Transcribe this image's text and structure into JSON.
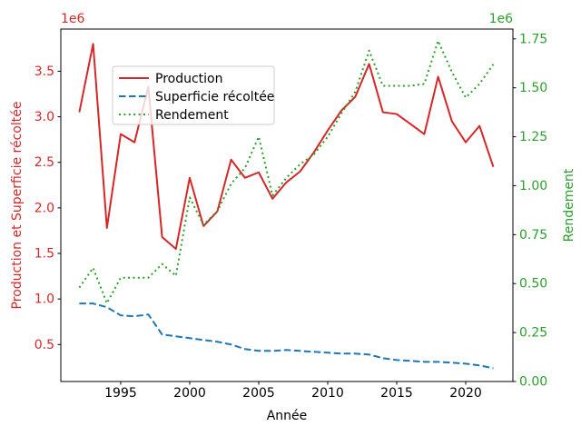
{
  "chart_data": {
    "type": "line",
    "xlabel": "Année",
    "ylabel_left": "Production et Superficie récoltée",
    "ylabel_right": "Rendement",
    "x": [
      1992,
      1993,
      1994,
      1995,
      1996,
      1997,
      1998,
      1999,
      2000,
      2001,
      2002,
      2003,
      2004,
      2005,
      2006,
      2007,
      2008,
      2009,
      2010,
      2011,
      2012,
      2013,
      2014,
      2015,
      2016,
      2017,
      2018,
      2019,
      2020,
      2021,
      2022
    ],
    "series": [
      {
        "name": "Production",
        "axis": "left",
        "color": "#d62728",
        "style": "solid",
        "values": [
          3050000,
          3800000,
          1780000,
          2810000,
          2720000,
          3330000,
          1680000,
          1550000,
          2330000,
          1800000,
          1960000,
          2530000,
          2330000,
          2390000,
          2100000,
          2280000,
          2400000,
          2610000,
          2850000,
          3070000,
          3220000,
          3580000,
          3050000,
          3030000,
          2920000,
          2810000,
          3440000,
          2950000,
          2720000,
          2900000,
          2450000
        ]
      },
      {
        "name": "Superficie récoltée",
        "axis": "left",
        "color": "#1f77b4",
        "style": "dashed",
        "values": [
          950000,
          950000,
          910000,
          820000,
          810000,
          830000,
          610000,
          590000,
          570000,
          550000,
          530000,
          500000,
          450000,
          430000,
          430000,
          440000,
          430000,
          420000,
          410000,
          400000,
          400000,
          390000,
          350000,
          330000,
          320000,
          310000,
          310000,
          300000,
          290000,
          270000,
          240000
        ]
      },
      {
        "name": "Rendement",
        "axis": "right",
        "color": "#2ca02c",
        "style": "dotted",
        "values": [
          480000,
          580000,
          400000,
          530000,
          530000,
          530000,
          600000,
          540000,
          940000,
          800000,
          870000,
          1010000,
          1090000,
          1250000,
          950000,
          1040000,
          1110000,
          1160000,
          1250000,
          1370000,
          1480000,
          1690000,
          1510000,
          1510000,
          1510000,
          1520000,
          1740000,
          1580000,
          1450000,
          1520000,
          1620000
        ]
      }
    ],
    "x_axis": {
      "range": [
        1990.66,
        2023.42
      ],
      "ticks": [
        1995,
        2000,
        2005,
        2010,
        2015,
        2020
      ],
      "tick_labels": [
        "1995",
        "2000",
        "2005",
        "2010",
        "2015",
        "2020"
      ],
      "color": "#000000"
    },
    "left_axis": {
      "range": [
        94000,
        3963000
      ],
      "ticks": [
        500000,
        1000000,
        1500000,
        2000000,
        2500000,
        3000000,
        3500000
      ],
      "tick_labels": [
        "0.5",
        "1.0",
        "1.5",
        "2.0",
        "2.5",
        "3.0",
        "3.5"
      ],
      "scale_label": "1e6",
      "color": "#d62728"
    },
    "right_axis": {
      "range": [
        0,
        1800000
      ],
      "ticks": [
        0,
        250000,
        500000,
        750000,
        1000000,
        1250000,
        1500000,
        1750000
      ],
      "tick_labels": [
        "0.00",
        "0.25",
        "0.50",
        "0.75",
        "1.00",
        "1.25",
        "1.50",
        "1.75"
      ],
      "scale_label": "1e6",
      "color": "#2ca02c"
    },
    "legend": {
      "position": "upper-left-inside",
      "entries": [
        "Production",
        "Superficie récoltée",
        "Rendement"
      ]
    },
    "grid": false,
    "title": ""
  }
}
